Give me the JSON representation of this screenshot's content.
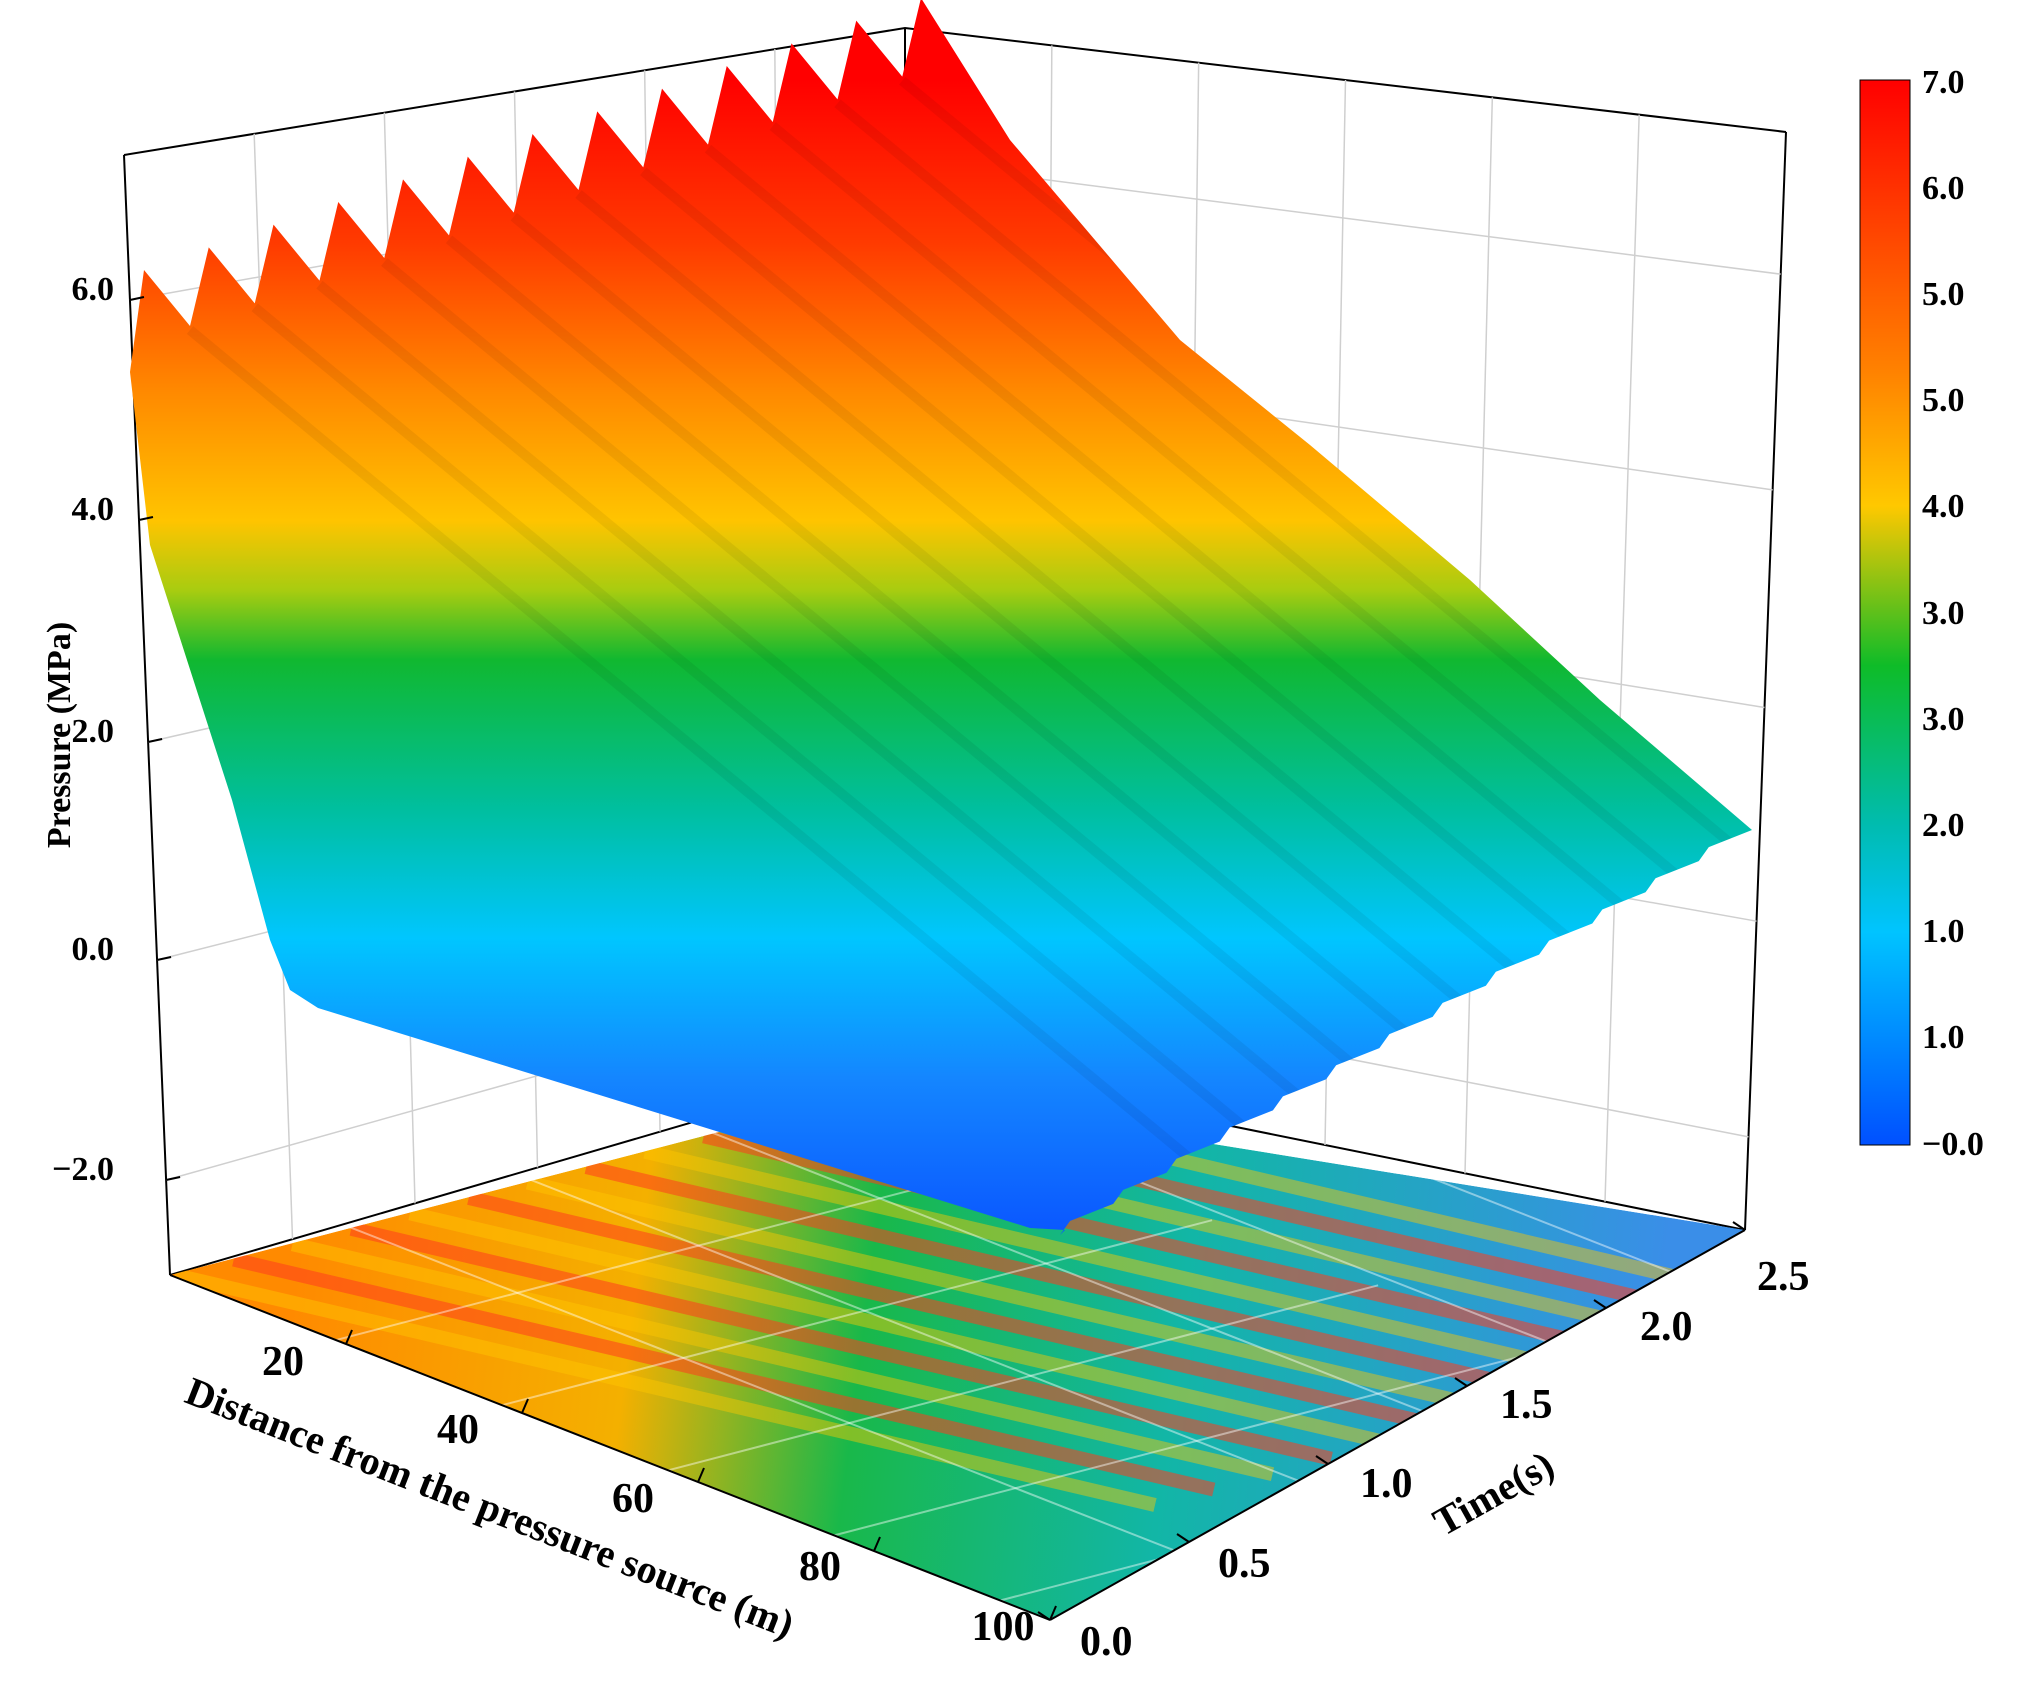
{
  "chart_data": {
    "type": "surface3d",
    "title": "",
    "xlabel": "Distance from the pressure source (m)",
    "ylabel": "Time(s)",
    "zlabel": "Pressure (MPa)",
    "x_ticks": [
      "20",
      "40",
      "60",
      "80",
      "100"
    ],
    "y_ticks": [
      "0.0",
      "0.5",
      "1.0",
      "1.5",
      "2.0",
      "2.5"
    ],
    "z_ticks": [
      "−2.0",
      "0.0",
      "2.0",
      "4.0",
      "6.0"
    ],
    "xlim": [
      0,
      100
    ],
    "ylim": [
      0,
      2.5
    ],
    "zlim": [
      -2.6,
      7
    ],
    "grid": true,
    "colorbar": {
      "labels": [
        "7.0",
        "6.0",
        "5.0",
        "5.0",
        "4.0",
        "3.0",
        "3.0",
        "2.0",
        "1.0",
        "1.0",
        "−0.0"
      ],
      "colors": [
        "#ff0000",
        "#ff4a00",
        "#ff8c00",
        "#ffc800",
        "#0fbf20",
        "#00bdbd",
        "#00c8ff",
        "#0064ff"
      ]
    },
    "surface": {
      "pulses": 13,
      "peak_pressure_mpa": 6.6,
      "pressure_at_100m_start_mpa": 0.5,
      "pressure_at_100m_end_mpa": 1.5
    },
    "floor_projection": "contour map of pressure"
  }
}
